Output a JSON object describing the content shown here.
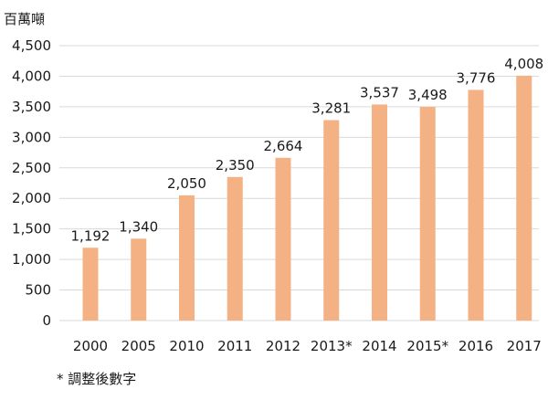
{
  "chart_data": {
    "type": "bar",
    "title": "",
    "unit_label": "百萬噸",
    "xlabel": "",
    "ylabel": "百萬噸",
    "categories": [
      "2000",
      "2005",
      "2010",
      "2011",
      "2012",
      "2013*",
      "2014",
      "2015*",
      "2016",
      "2017"
    ],
    "values": [
      1192,
      1340,
      2050,
      2350,
      2664,
      3281,
      3537,
      3498,
      3776,
      4008
    ],
    "value_labels": [
      "1,192",
      "1,340",
      "2,050",
      "2,350",
      "2,664",
      "3,281",
      "3,537",
      "3,498",
      "3,776",
      "4,008"
    ],
    "ylim": [
      0,
      4500
    ],
    "yticks": [
      0,
      500,
      1000,
      1500,
      2000,
      2500,
      3000,
      3500,
      4000,
      4500
    ],
    "ytick_labels": [
      "0",
      "500",
      "1,000",
      "1,500",
      "2,000",
      "2,500",
      "3,000",
      "3,500",
      "4,000",
      "4,500"
    ],
    "grid": true,
    "legend": "none",
    "bar_color": "#f4b183",
    "grid_color": "#d9d9d9",
    "footnote": "* 調整後數字"
  }
}
